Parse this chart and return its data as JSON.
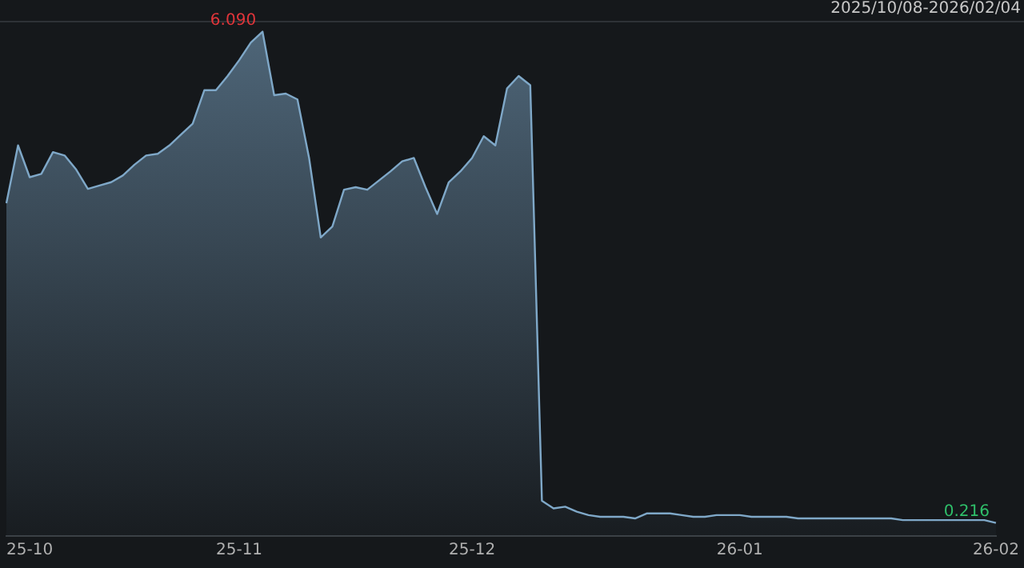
{
  "chart_data": {
    "type": "area",
    "subtitle": "2025/10/08-2026/02/04",
    "ylim": [
      0.06,
      6.22
    ],
    "tick_labels": "x",
    "categories": [
      null,
      null,
      "25-10",
      null,
      null,
      null,
      null,
      null,
      null,
      null,
      null,
      null,
      null,
      null,
      null,
      null,
      null,
      null,
      null,
      null,
      "25-11",
      null,
      null,
      null,
      null,
      null,
      null,
      null,
      null,
      null,
      null,
      null,
      null,
      null,
      null,
      null,
      null,
      null,
      null,
      null,
      "25-12",
      null,
      null,
      null,
      null,
      null,
      null,
      null,
      null,
      null,
      null,
      null,
      null,
      null,
      null,
      null,
      null,
      null,
      null,
      null,
      null,
      null,
      null,
      "26-01",
      null,
      null,
      null,
      null,
      null,
      null,
      null,
      null,
      null,
      null,
      null,
      null,
      null,
      null,
      null,
      null,
      null,
      null,
      null,
      null,
      null,
      "26-02"
    ],
    "series": [
      {
        "color": "#7fa8c8",
        "values": [
          4.04,
          4.73,
          4.35,
          4.39,
          4.65,
          4.61,
          4.44,
          4.21,
          4.25,
          4.29,
          4.37,
          4.5,
          4.61,
          4.63,
          4.73,
          4.86,
          4.99,
          5.39,
          5.39,
          5.56,
          5.75,
          5.96,
          6.09,
          5.33,
          5.35,
          5.28,
          4.58,
          3.63,
          3.76,
          4.2,
          4.23,
          4.2,
          4.31,
          4.42,
          4.54,
          4.58,
          4.23,
          3.91,
          4.29,
          4.42,
          4.58,
          4.84,
          4.73,
          5.41,
          5.56,
          5.45,
          0.48,
          0.39,
          0.41,
          0.35,
          0.31,
          0.29,
          0.29,
          0.29,
          0.27,
          0.33,
          0.33,
          0.33,
          0.31,
          0.29,
          0.29,
          0.31,
          0.31,
          0.31,
          0.29,
          0.29,
          0.29,
          0.29,
          0.27,
          0.27,
          0.27,
          0.27,
          0.27,
          0.27,
          0.27,
          0.27,
          0.27,
          0.25,
          0.25,
          0.25,
          0.25,
          0.25,
          0.25,
          0.25,
          0.25,
          0.216
        ],
        "value_labels": [
          null,
          null,
          null,
          null,
          null,
          null,
          null,
          null,
          null,
          null,
          null,
          null,
          null,
          null,
          null,
          null,
          null,
          null,
          null,
          null,
          null,
          null,
          "6.090",
          null,
          null,
          null,
          null,
          null,
          null,
          null,
          null,
          null,
          null,
          null,
          null,
          null,
          null,
          null,
          null,
          null,
          null,
          null,
          null,
          null,
          null,
          null,
          null,
          null,
          null,
          null,
          null,
          null,
          null,
          null,
          null,
          null,
          null,
          null,
          null,
          null,
          null,
          null,
          null,
          null,
          null,
          null,
          null,
          null,
          null,
          null,
          null,
          null,
          null,
          null,
          null,
          null,
          null,
          null,
          null,
          null,
          null,
          null,
          null,
          null,
          null,
          "0.216"
        ]
      }
    ]
  }
}
